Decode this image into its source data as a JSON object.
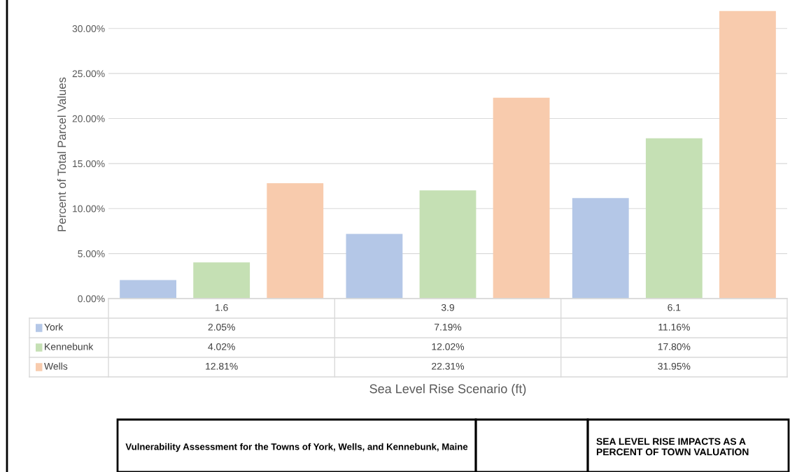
{
  "chart_data": {
    "type": "bar",
    "title": "SEA LEVEL RISE IMPACTS AS A PERCENT OF TOWN VALUATION",
    "subtitle": "Vulnerability Assessment for the Towns of York, Wells, and Kennebunk, Maine",
    "annotations": [
      "Sea Level Rise Scenario (ft)"
    ],
    "ylabel": "Percent of Total Parcel Values",
    "categories": [
      "1.6",
      "3.9",
      "6.1"
    ],
    "series": [
      {
        "name": "York",
        "color": "#b4c7e7",
        "values": [
          2.05,
          7.19,
          11.16
        ],
        "value_labels": [
          "2.05%",
          "7.19%",
          "11.16%"
        ]
      },
      {
        "name": "Kennebunk",
        "color": "#c5e0b4",
        "values": [
          4.02,
          12.02,
          17.8
        ],
        "value_labels": [
          "4.02%",
          "12.02%",
          "17.80%"
        ]
      },
      {
        "name": "Wells",
        "color": "#f8cbad",
        "values": [
          12.81,
          22.31,
          31.95
        ],
        "value_labels": [
          "12.81%",
          "22.31%",
          "31.95%"
        ]
      }
    ],
    "ylim": [
      0,
      32
    ],
    "yticks": [
      {
        "value": 0,
        "label": "0.00%"
      },
      {
        "value": 5,
        "label": "5.00%"
      },
      {
        "value": 10,
        "label": "10.00%"
      },
      {
        "value": 15,
        "label": "15.00%"
      },
      {
        "value": 20,
        "label": "20.00%"
      },
      {
        "value": 25,
        "label": "25.00%"
      },
      {
        "value": 30,
        "label": "30.00%"
      }
    ],
    "grid": "y",
    "legend": "bottom"
  }
}
